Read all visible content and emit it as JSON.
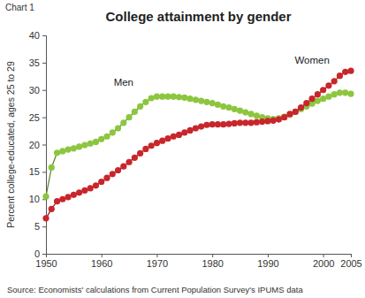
{
  "chart_data": {
    "type": "line",
    "chart_label": "Chart 1",
    "title": "College attainment by gender",
    "y_label": "Percent college-educated, ages 25 to 29",
    "source": "Source: Economists' calculations from Current Population Survey's IPUMS data",
    "x": [
      1950,
      1951,
      1952,
      1953,
      1954,
      1955,
      1956,
      1957,
      1958,
      1959,
      1960,
      1961,
      1962,
      1963,
      1964,
      1965,
      1966,
      1967,
      1968,
      1969,
      1970,
      1971,
      1972,
      1973,
      1974,
      1975,
      1976,
      1977,
      1978,
      1979,
      1980,
      1981,
      1982,
      1983,
      1984,
      1985,
      1986,
      1987,
      1988,
      1989,
      1990,
      1991,
      1992,
      1993,
      1994,
      1995,
      1996,
      1997,
      1998,
      1999,
      2000,
      2001,
      2002,
      2003,
      2004,
      2005
    ],
    "series": [
      {
        "name": "Men",
        "color": "#8cc63f",
        "marker": "circle",
        "values": [
          10.5,
          15.8,
          18.5,
          18.8,
          19.1,
          19.3,
          19.6,
          19.9,
          20.2,
          20.5,
          21.0,
          21.5,
          22.2,
          23.0,
          24.0,
          25.0,
          26.0,
          27.0,
          27.8,
          28.5,
          28.8,
          28.8,
          28.8,
          28.8,
          28.7,
          28.6,
          28.4,
          28.2,
          28.0,
          27.8,
          27.6,
          27.3,
          27.0,
          26.8,
          26.5,
          26.2,
          25.9,
          25.6,
          25.3,
          25.0,
          24.8,
          24.7,
          24.8,
          25.1,
          25.5,
          26.0,
          26.5,
          27.0,
          27.5,
          28.0,
          28.4,
          28.8,
          29.2,
          29.5,
          29.5,
          29.3
        ]
      },
      {
        "name": "Women",
        "color": "#c8262b",
        "marker": "circle",
        "values": [
          6.5,
          8.2,
          9.6,
          10.0,
          10.4,
          10.8,
          11.2,
          11.6,
          12.0,
          12.5,
          13.2,
          13.9,
          14.6,
          15.3,
          16.0,
          16.8,
          17.6,
          18.4,
          19.2,
          19.8,
          20.3,
          20.7,
          21.1,
          21.5,
          21.8,
          22.2,
          22.6,
          23.0,
          23.3,
          23.6,
          23.7,
          23.7,
          23.7,
          23.8,
          23.9,
          24.0,
          24.0,
          24.0,
          24.1,
          24.2,
          24.3,
          24.4,
          24.6,
          25.0,
          25.6,
          26.0,
          26.8,
          27.6,
          28.4,
          29.2,
          30.0,
          30.8,
          31.6,
          32.6,
          33.3,
          33.5
        ]
      }
    ],
    "xlim": [
      1950,
      2005
    ],
    "xticks": [
      1950,
      1960,
      1970,
      1980,
      1990,
      2000,
      2005
    ],
    "ylim": [
      0,
      40
    ],
    "yticks": [
      0,
      5,
      10,
      15,
      20,
      25,
      30,
      35,
      40
    ],
    "grid": false
  }
}
